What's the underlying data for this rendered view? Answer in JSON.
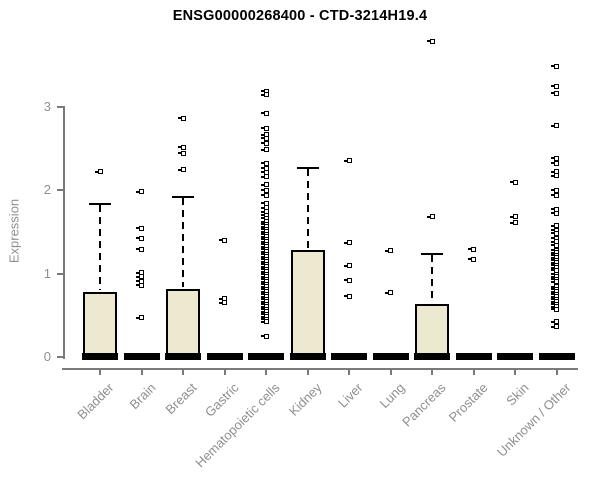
{
  "page": {
    "background": "#FFFFFF"
  },
  "chart_data": {
    "type": "boxplot",
    "title": "ENSG00000268400 - CTD-3214H19.4",
    "ylabel": "Expression",
    "xlabel": "",
    "ylim": [
      0,
      3
    ],
    "yticks": [
      0,
      1,
      2,
      3
    ],
    "grid": false,
    "legend": "none",
    "axis_color": "#7a7a7a",
    "text_color": "#8f8f8f",
    "box_fill": "#EDE8D0",
    "box_border": "#000000",
    "categories": [
      "Bladder",
      "Brain",
      "Breast",
      "Gastric",
      "Hematopoietic cells",
      "Kidney",
      "Liver",
      "Lung",
      "Pancreas",
      "Prostate",
      "Skin",
      "Unknown / Other"
    ],
    "series": [
      {
        "category": "Bladder",
        "q1": 0,
        "median": 0,
        "q3": 0.78,
        "whisker_low": 0,
        "whisker_high": 1.84,
        "outliers": [
          2.22
        ]
      },
      {
        "category": "Brain",
        "q1": 0,
        "median": 0,
        "q3": 0,
        "whisker_low": 0,
        "whisker_high": 0,
        "outliers": [
          1.98,
          1.54,
          1.42,
          1.29,
          1.01,
          0.96,
          0.91,
          0.86,
          0.47
        ]
      },
      {
        "category": "Breast",
        "q1": 0,
        "median": 0,
        "q3": 0.81,
        "whisker_low": 0,
        "whisker_high": 1.93,
        "outliers": [
          2.86,
          2.51,
          2.44,
          2.24
        ]
      },
      {
        "category": "Gastric",
        "q1": 0,
        "median": 0,
        "q3": 0,
        "whisker_low": 0,
        "whisker_high": 0,
        "outliers": [
          1.4,
          0.7,
          0.65
        ]
      },
      {
        "category": "Hematopoietic cells",
        "q1": 0,
        "median": 0,
        "q3": 0,
        "whisker_low": 0,
        "whisker_high": 0,
        "outliers": [
          3.18,
          3.14,
          2.92,
          2.74,
          2.66,
          2.62,
          2.56,
          2.48,
          2.32,
          2.26,
          2.21,
          2.16,
          2.06,
          2.0,
          1.94,
          1.84,
          1.79,
          1.74,
          1.7,
          1.66,
          1.62,
          1.59,
          1.56,
          1.53,
          1.5,
          1.47,
          1.44,
          1.41,
          1.38,
          1.35,
          1.32,
          1.29,
          1.26,
          1.23,
          1.2,
          1.17,
          1.14,
          1.11,
          1.08,
          1.05,
          1.02,
          0.99,
          0.96,
          0.93,
          0.9,
          0.87,
          0.84,
          0.81,
          0.78,
          0.75,
          0.72,
          0.69,
          0.66,
          0.63,
          0.6,
          0.57,
          0.54,
          0.51,
          0.48,
          0.45,
          0.42,
          0.25
        ]
      },
      {
        "category": "Kidney",
        "q1": 0,
        "median": 0,
        "q3": 1.28,
        "whisker_low": 0,
        "whisker_high": 2.28,
        "outliers": []
      },
      {
        "category": "Liver",
        "q1": 0,
        "median": 0,
        "q3": 0,
        "whisker_low": 0,
        "whisker_high": 0,
        "outliers": [
          2.35,
          1.37,
          1.09,
          0.92,
          0.73
        ]
      },
      {
        "category": "Lung",
        "q1": 0,
        "median": 0,
        "q3": 0,
        "whisker_low": 0,
        "whisker_high": 0,
        "outliers": [
          1.27,
          0.77
        ]
      },
      {
        "category": "Pancreas",
        "q1": 0,
        "median": 0,
        "q3": 0.64,
        "whisker_low": 0,
        "whisker_high": 1.25,
        "outliers": [
          3.78,
          1.68
        ]
      },
      {
        "category": "Prostate",
        "q1": 0,
        "median": 0,
        "q3": 0,
        "whisker_low": 0,
        "whisker_high": 0,
        "outliers": [
          1.29,
          1.17
        ]
      },
      {
        "category": "Skin",
        "q1": 0,
        "median": 0,
        "q3": 0,
        "whisker_low": 0,
        "whisker_high": 0,
        "outliers": [
          2.09,
          1.68,
          1.61
        ]
      },
      {
        "category": "Unknown / Other",
        "q1": 0,
        "median": 0,
        "q3": 0,
        "whisker_low": 0,
        "whisker_high": 0,
        "outliers": [
          3.48,
          3.24,
          3.16,
          2.77,
          2.38,
          2.32,
          2.22,
          2.17,
          2.0,
          1.94,
          1.77,
          1.72,
          1.57,
          1.52,
          1.48,
          1.42,
          1.38,
          1.34,
          1.28,
          1.25,
          1.22,
          1.19,
          1.16,
          1.13,
          1.1,
          1.07,
          1.04,
          0.99,
          0.96,
          0.93,
          0.9,
          0.84,
          0.81,
          0.78,
          0.75,
          0.72,
          0.69,
          0.66,
          0.63,
          0.6,
          0.57,
          0.42,
          0.36
        ]
      }
    ]
  }
}
